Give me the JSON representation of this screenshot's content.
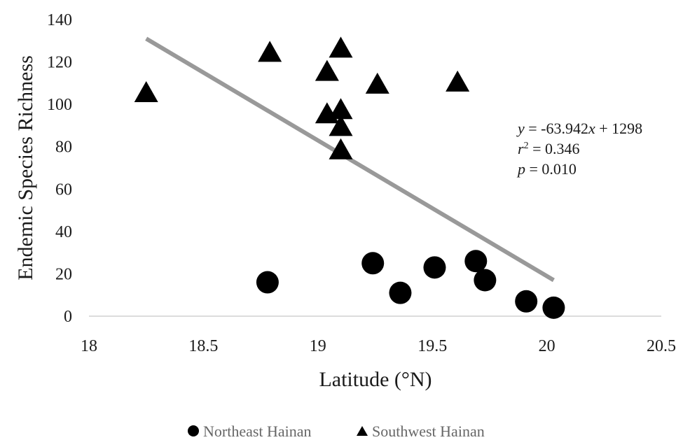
{
  "chart_data": {
    "type": "scatter",
    "xlabel": "Latitude (°N)",
    "ylabel": "Endemic Species Richness",
    "xlim": [
      18,
      20.5
    ],
    "ylim": [
      0,
      140
    ],
    "x_ticks": [
      "18",
      "18.5",
      "19",
      "19.5",
      "20",
      "20.5"
    ],
    "y_ticks": [
      "0",
      "20",
      "40",
      "60",
      "80",
      "100",
      "120",
      "140"
    ],
    "grid": false,
    "legend_position": "bottom",
    "series": [
      {
        "name": "Northeast Hainan",
        "marker": "circle",
        "color": "#000000",
        "points": [
          {
            "x": 18.78,
            "y": 16
          },
          {
            "x": 19.24,
            "y": 25
          },
          {
            "x": 19.36,
            "y": 11
          },
          {
            "x": 19.51,
            "y": 23
          },
          {
            "x": 19.69,
            "y": 26
          },
          {
            "x": 19.73,
            "y": 17
          },
          {
            "x": 19.91,
            "y": 7
          },
          {
            "x": 20.03,
            "y": 4
          }
        ]
      },
      {
        "name": "Southwest Hainan",
        "marker": "triangle",
        "color": "#000000",
        "points": [
          {
            "x": 18.25,
            "y": 106
          },
          {
            "x": 18.79,
            "y": 125
          },
          {
            "x": 19.04,
            "y": 116
          },
          {
            "x": 19.04,
            "y": 96
          },
          {
            "x": 19.1,
            "y": 127
          },
          {
            "x": 19.1,
            "y": 98
          },
          {
            "x": 19.1,
            "y": 90
          },
          {
            "x": 19.1,
            "y": 79
          },
          {
            "x": 19.26,
            "y": 110
          },
          {
            "x": 19.61,
            "y": 111
          }
        ]
      }
    ],
    "trendline": {
      "color": "#999999",
      "x_start": 18.25,
      "y_start": 131,
      "x_end": 20.03,
      "y_end": 17
    },
    "annotation": {
      "equation": {
        "y": "y",
        "rest": " = -63.942",
        "x": "x",
        "tail": " + 1298"
      },
      "r2": {
        "r": "r",
        "sup": "2",
        "value": " = 0.346"
      },
      "p": {
        "p": "p",
        "value": " = 0.010"
      }
    }
  }
}
